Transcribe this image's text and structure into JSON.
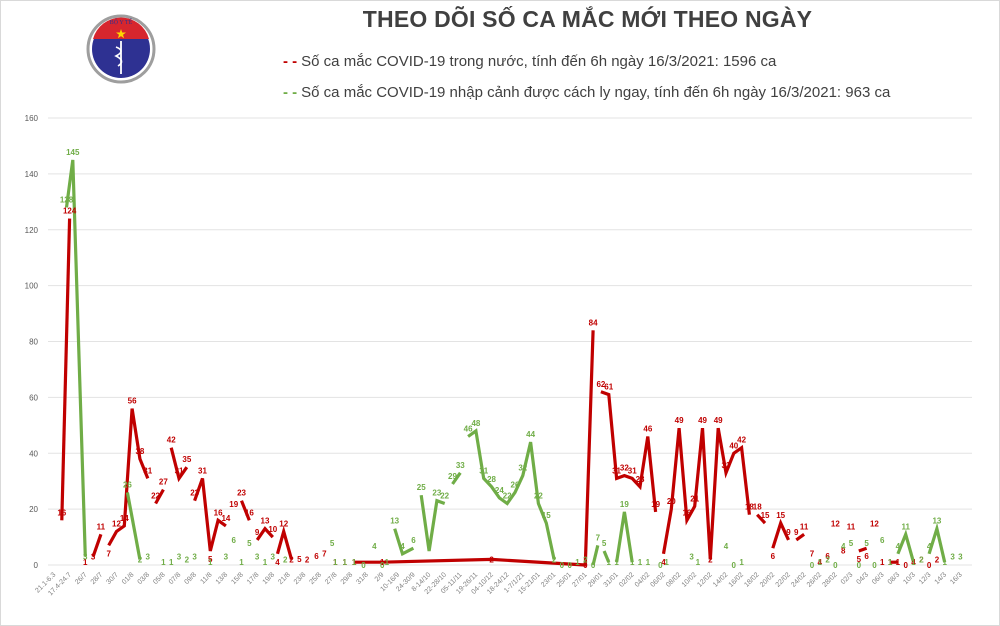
{
  "header": {
    "title": "THEO DÕI SỐ CA MẮC MỚI THEO NGÀY",
    "logo_text_top": "BỘ Y TẾ",
    "logo_text_bottom": "MINISTRY OF HEALTH"
  },
  "legend": [
    {
      "marker": "- -",
      "text": "Số ca mắc COVID-19 trong nước, tính đến 6h ngày 16/3/2021: 1596 ca",
      "color": "#c00000"
    },
    {
      "marker": "- -",
      "text": "Số ca mắc COVID-19 nhập cảnh được cách ly ngay, tính đến 6h ngày 16/3/2021: 963 ca",
      "color": "#70ad47"
    }
  ],
  "chart_data": {
    "type": "line",
    "title": "THEO DÕI SỐ CA MẮC MỚI THEO NGÀY",
    "xlabel": "",
    "ylabel": "",
    "ylim": [
      0,
      160
    ],
    "yticks": [
      0,
      20,
      40,
      60,
      80,
      100,
      120,
      140,
      160
    ],
    "grid": true,
    "legend_position": "top",
    "x_tick_labels": [
      "21.1-6.3",
      "17.4-24.7",
      "26/7",
      "28/7",
      "30/7",
      "01/8",
      "03/8",
      "05/8",
      "07/8",
      "09/8",
      "11/8",
      "13/8",
      "15/8",
      "17/8",
      "19/8",
      "21/8",
      "23/8",
      "25/8",
      "27/8",
      "29/8",
      "31/8",
      "2/9",
      "10-16/9",
      "24-30/9",
      "8-14/10",
      "22-28/10",
      "05-11/11",
      "19-26/11",
      "04-10/12",
      "18-24/12",
      "1-7/1/21",
      "15-21/01",
      "23/01",
      "25/01",
      "27/01",
      "29/01",
      "31/01",
      "02/02",
      "04/02",
      "06/02",
      "08/02",
      "10/02",
      "12/02",
      "14/02",
      "16/02",
      "18/02",
      "20/02",
      "22/02",
      "24/02",
      "26/02",
      "28/02",
      "02/3",
      "04/3",
      "06/3",
      "08/3",
      "10/3",
      "12/3",
      "14/3",
      "16/3"
    ],
    "series": [
      {
        "name": "Số ca mắc COVID-19 trong nước, tính đến 6h ngày 16/3/2021: 1596 ca",
        "color": "#c00000",
        "points": [
          [
            0.5,
            16
          ],
          [
            1.0,
            124
          ],
          [
            2.0,
            1
          ],
          [
            2.5,
            3
          ],
          [
            3.0,
            11
          ],
          [
            3.5,
            7
          ],
          [
            4.0,
            12
          ],
          [
            4.5,
            14
          ],
          [
            5.0,
            56
          ],
          [
            5.5,
            38
          ],
          [
            6.0,
            31
          ],
          [
            6.5,
            22
          ],
          [
            7.0,
            27
          ],
          [
            7.5,
            42
          ],
          [
            8.0,
            31
          ],
          [
            8.5,
            35
          ],
          [
            9.0,
            23
          ],
          [
            9.5,
            31
          ],
          [
            10.0,
            5
          ],
          [
            10.5,
            16
          ],
          [
            11.0,
            14
          ],
          [
            11.5,
            19
          ],
          [
            12.0,
            23
          ],
          [
            12.5,
            16
          ],
          [
            13.0,
            9
          ],
          [
            13.5,
            13
          ],
          [
            14.0,
            10
          ],
          [
            14.3,
            4
          ],
          [
            14.7,
            12
          ],
          [
            15.2,
            2
          ],
          [
            15.7,
            5
          ],
          [
            16.2,
            2
          ],
          [
            16.8,
            6
          ],
          [
            17.3,
            7
          ],
          [
            18.0,
            1
          ],
          [
            18.6,
            1
          ],
          [
            19.2,
            1
          ],
          [
            21.0,
            1
          ],
          [
            28.0,
            2
          ],
          [
            34.0,
            0
          ],
          [
            34.5,
            84
          ],
          [
            35.0,
            62
          ],
          [
            35.5,
            61
          ],
          [
            36.0,
            31
          ],
          [
            36.5,
            32
          ],
          [
            37.0,
            31
          ],
          [
            37.5,
            28
          ],
          [
            38.0,
            46
          ],
          [
            38.5,
            19
          ],
          [
            39.0,
            4
          ],
          [
            39.5,
            20
          ],
          [
            40.0,
            49
          ],
          [
            40.5,
            16
          ],
          [
            41.0,
            21
          ],
          [
            41.5,
            49
          ],
          [
            42.0,
            2
          ],
          [
            42.5,
            49
          ],
          [
            43.0,
            33
          ],
          [
            43.5,
            40
          ],
          [
            44.0,
            42
          ],
          [
            44.5,
            18
          ],
          [
            45.0,
            18
          ],
          [
            45.5,
            15
          ],
          [
            46.0,
            6
          ],
          [
            46.5,
            15
          ],
          [
            47.0,
            9
          ],
          [
            47.5,
            9
          ],
          [
            48.0,
            11
          ],
          [
            48.5,
            7
          ],
          [
            49.0,
            4
          ],
          [
            49.5,
            6
          ],
          [
            50.0,
            12
          ],
          [
            50.5,
            8
          ],
          [
            51.0,
            11
          ],
          [
            51.5,
            5
          ],
          [
            52.0,
            6
          ],
          [
            52.5,
            12
          ],
          [
            53.0,
            1
          ],
          [
            53.5,
            1
          ],
          [
            54.0,
            1
          ],
          [
            54.5,
            0
          ],
          [
            55.0,
            4
          ],
          [
            55.5,
            2
          ],
          [
            56.0,
            0
          ],
          [
            56.5,
            2
          ]
        ],
        "segments": [
          [
            0,
            1
          ],
          [
            3,
            4
          ],
          [
            5,
            6,
            7,
            8,
            9,
            10
          ],
          [
            11,
            12
          ],
          [
            13,
            14,
            15
          ],
          [
            16,
            17,
            18,
            19,
            20
          ],
          [
            22,
            23
          ],
          [
            24,
            25,
            26
          ],
          [
            27,
            28,
            29
          ],
          [
            36,
            37,
            38,
            39,
            40
          ],
          [
            41,
            42,
            43,
            44,
            45,
            46,
            47,
            48
          ],
          [
            49,
            50,
            51,
            52,
            53,
            54,
            55,
            56,
            57,
            58,
            59,
            60
          ],
          [
            61,
            62
          ],
          [
            63,
            64,
            65
          ],
          [
            66,
            67
          ],
          [
            74,
            75
          ],
          [
            78,
            79
          ]
        ]
      },
      {
        "name": "Số ca mắc COVID-19 nhập cảnh được cách ly ngay, tính đến 6h ngày 16/3/2021: 963 ca",
        "color": "#70ad47",
        "points": [
          [
            0.8,
            128
          ],
          [
            1.2,
            145
          ],
          [
            2.0,
            3
          ],
          [
            4.7,
            26
          ],
          [
            5.5,
            2
          ],
          [
            6.0,
            3
          ],
          [
            7.0,
            1
          ],
          [
            7.5,
            1
          ],
          [
            8.0,
            3
          ],
          [
            8.5,
            2
          ],
          [
            9.0,
            3
          ],
          [
            10.0,
            1
          ],
          [
            11.0,
            3
          ],
          [
            11.5,
            6
          ],
          [
            12.0,
            1
          ],
          [
            12.5,
            5
          ],
          [
            13.0,
            3
          ],
          [
            13.5,
            1
          ],
          [
            14.0,
            3
          ],
          [
            14.8,
            2
          ],
          [
            17.8,
            5
          ],
          [
            18.0,
            1
          ],
          [
            18.6,
            1
          ],
          [
            19.2,
            1
          ],
          [
            19.8,
            0
          ],
          [
            20.5,
            4
          ],
          [
            21.0,
            0
          ],
          [
            21.3,
            1
          ],
          [
            21.8,
            13
          ],
          [
            22.3,
            4
          ],
          [
            23.0,
            6
          ],
          [
            23.5,
            25
          ],
          [
            24.0,
            5
          ],
          [
            24.5,
            23
          ],
          [
            25.0,
            22
          ],
          [
            25.5,
            29
          ],
          [
            26.0,
            33
          ],
          [
            26.5,
            46
          ],
          [
            27.0,
            48
          ],
          [
            27.5,
            31
          ],
          [
            28.0,
            28
          ],
          [
            28.5,
            24
          ],
          [
            29.0,
            22
          ],
          [
            29.5,
            26
          ],
          [
            30.0,
            32
          ],
          [
            30.5,
            44
          ],
          [
            31.0,
            22
          ],
          [
            31.5,
            15
          ],
          [
            32.0,
            2
          ],
          [
            32.5,
            0
          ],
          [
            33.0,
            0
          ],
          [
            33.5,
            1
          ],
          [
            34.0,
            2
          ],
          [
            34.5,
            0
          ],
          [
            34.8,
            7
          ],
          [
            35.2,
            5
          ],
          [
            35.5,
            1
          ],
          [
            36.0,
            1
          ],
          [
            36.5,
            19
          ],
          [
            37.0,
            1
          ],
          [
            37.5,
            1
          ],
          [
            38.0,
            1
          ],
          [
            38.8,
            0
          ],
          [
            39.2,
            1
          ],
          [
            40.8,
            3
          ],
          [
            41.2,
            1
          ],
          [
            43.0,
            4
          ],
          [
            43.5,
            0
          ],
          [
            44.0,
            1
          ],
          [
            48.5,
            0
          ],
          [
            49.0,
            1
          ],
          [
            49.5,
            2
          ],
          [
            50.0,
            0
          ],
          [
            50.5,
            4
          ],
          [
            51.0,
            5
          ],
          [
            51.5,
            0
          ],
          [
            52.0,
            5
          ],
          [
            52.5,
            0
          ],
          [
            53.0,
            6
          ],
          [
            53.5,
            1
          ],
          [
            54.0,
            4
          ],
          [
            54.5,
            11
          ],
          [
            55.0,
            1
          ],
          [
            55.5,
            2
          ],
          [
            56.0,
            4
          ],
          [
            56.5,
            13
          ],
          [
            57.0,
            1
          ],
          [
            57.5,
            3
          ],
          [
            58.0,
            3
          ]
        ],
        "segments": [
          [
            0,
            1,
            2
          ],
          [
            3,
            4
          ],
          [
            28,
            29,
            30
          ],
          [
            31,
            32,
            33,
            34
          ],
          [
            35,
            36
          ],
          [
            37,
            38,
            39,
            40,
            41,
            42,
            43,
            44,
            45,
            46,
            47,
            48
          ],
          [
            53,
            54
          ],
          [
            55,
            56
          ],
          [
            57,
            58,
            59
          ],
          [
            80,
            81,
            82
          ],
          [
            84,
            85,
            86
          ]
        ]
      }
    ]
  }
}
